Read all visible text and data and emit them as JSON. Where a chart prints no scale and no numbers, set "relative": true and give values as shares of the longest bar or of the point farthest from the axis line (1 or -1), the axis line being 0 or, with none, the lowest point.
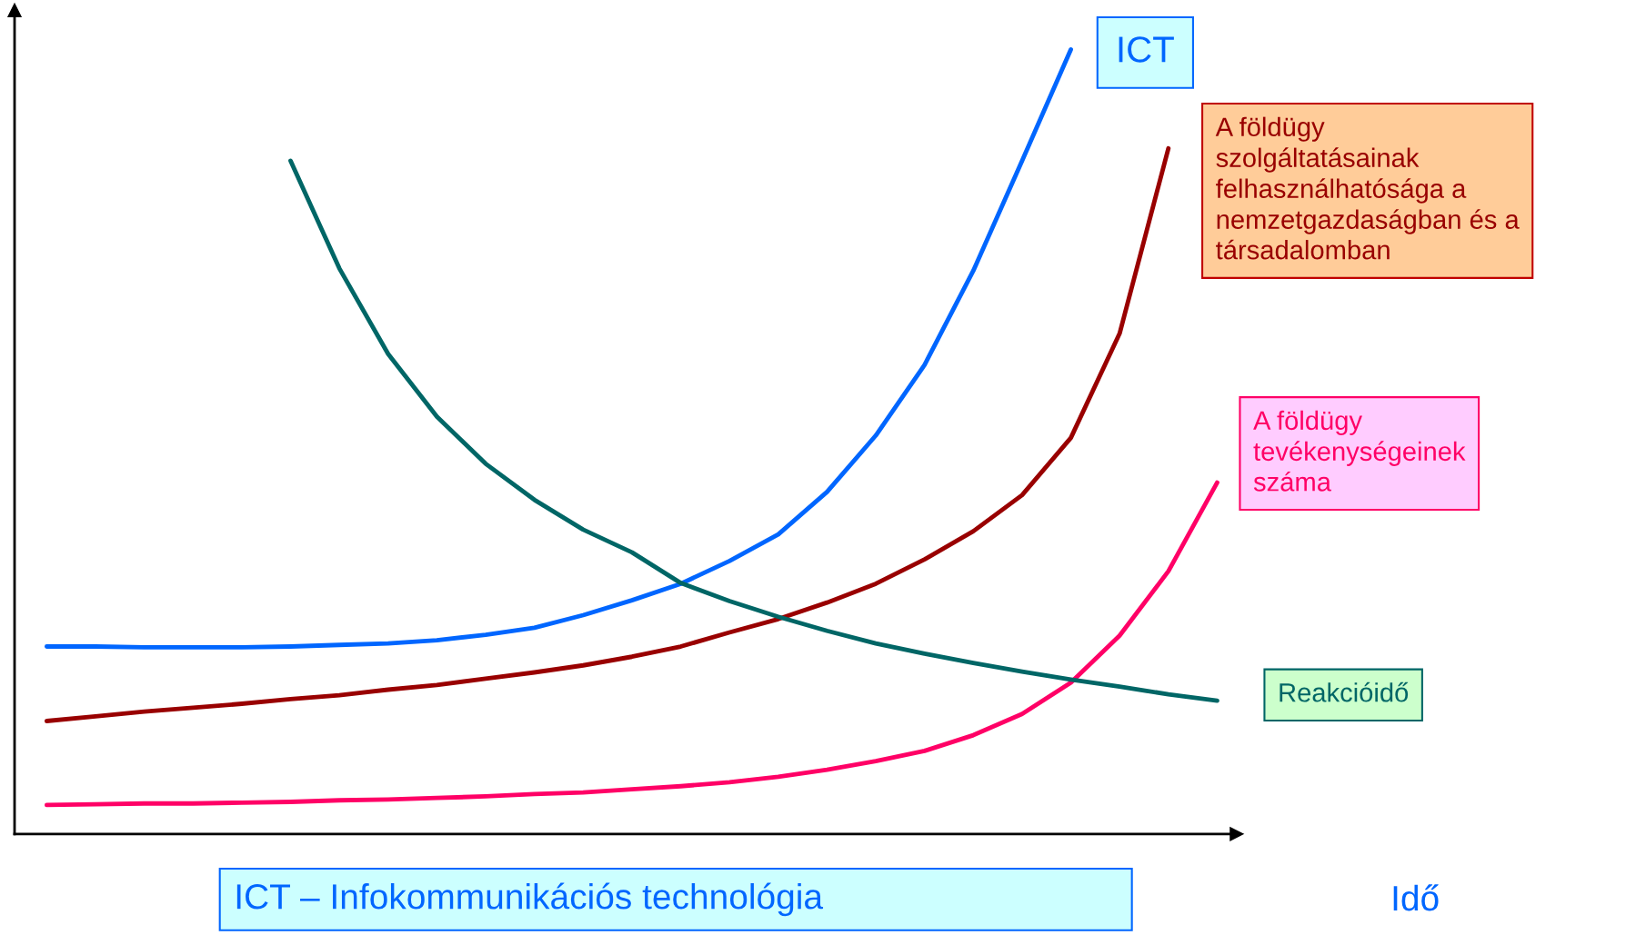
{
  "chart_data": {
    "type": "line",
    "relative": true,
    "xlabel": "Idő",
    "categories": [
      null,
      null,
      null,
      null,
      null,
      null,
      null,
      null,
      null,
      null,
      null,
      null,
      null,
      null,
      null,
      null,
      null,
      null,
      null,
      null,
      null,
      null,
      null,
      null,
      null
    ],
    "series": [
      {
        "name": "ICT",
        "color": "#0066ff",
        "values": [
          0.239,
          0.239,
          0.238,
          0.238,
          0.238,
          0.239,
          0.241,
          0.243,
          0.247,
          0.254,
          0.263,
          0.279,
          0.298,
          0.319,
          0.348,
          0.382,
          0.436,
          0.508,
          0.598,
          0.718,
          0.858,
          1.0,
          null,
          null,
          null
        ]
      },
      {
        "name": "A földügy\nszolgáltatásainak\nfelhasználhatósága a\nnemzetgazdaságban és a\ntársadalomban",
        "color": "#990000",
        "values": [
          0.144,
          0.15,
          0.156,
          0.161,
          0.166,
          0.172,
          0.177,
          0.184,
          0.19,
          0.198,
          0.206,
          0.215,
          0.226,
          0.239,
          0.257,
          0.274,
          0.295,
          0.319,
          0.35,
          0.386,
          0.432,
          0.505,
          0.638,
          0.874,
          null
        ]
      },
      {
        "name": "A földügy\ntevékenységeinek\nszáma",
        "color": "#ff0066",
        "values": [
          0.037,
          0.038,
          0.039,
          0.039,
          0.04,
          0.041,
          0.043,
          0.044,
          0.046,
          0.048,
          0.051,
          0.053,
          0.057,
          0.061,
          0.066,
          0.073,
          0.082,
          0.093,
          0.106,
          0.126,
          0.153,
          0.193,
          0.253,
          0.335,
          0.448
        ]
      },
      {
        "name": "Reakcióidő",
        "color": "#006666",
        "values": [
          null,
          null,
          null,
          null,
          null,
          0.858,
          0.721,
          0.612,
          0.532,
          0.472,
          0.426,
          0.388,
          0.359,
          0.32,
          0.297,
          0.277,
          0.259,
          0.243,
          0.23,
          0.218,
          0.207,
          0.197,
          0.188,
          0.178,
          0.17
        ]
      }
    ],
    "annotations": [
      "ICT – Infokommunikációs technológia"
    ]
  }
}
